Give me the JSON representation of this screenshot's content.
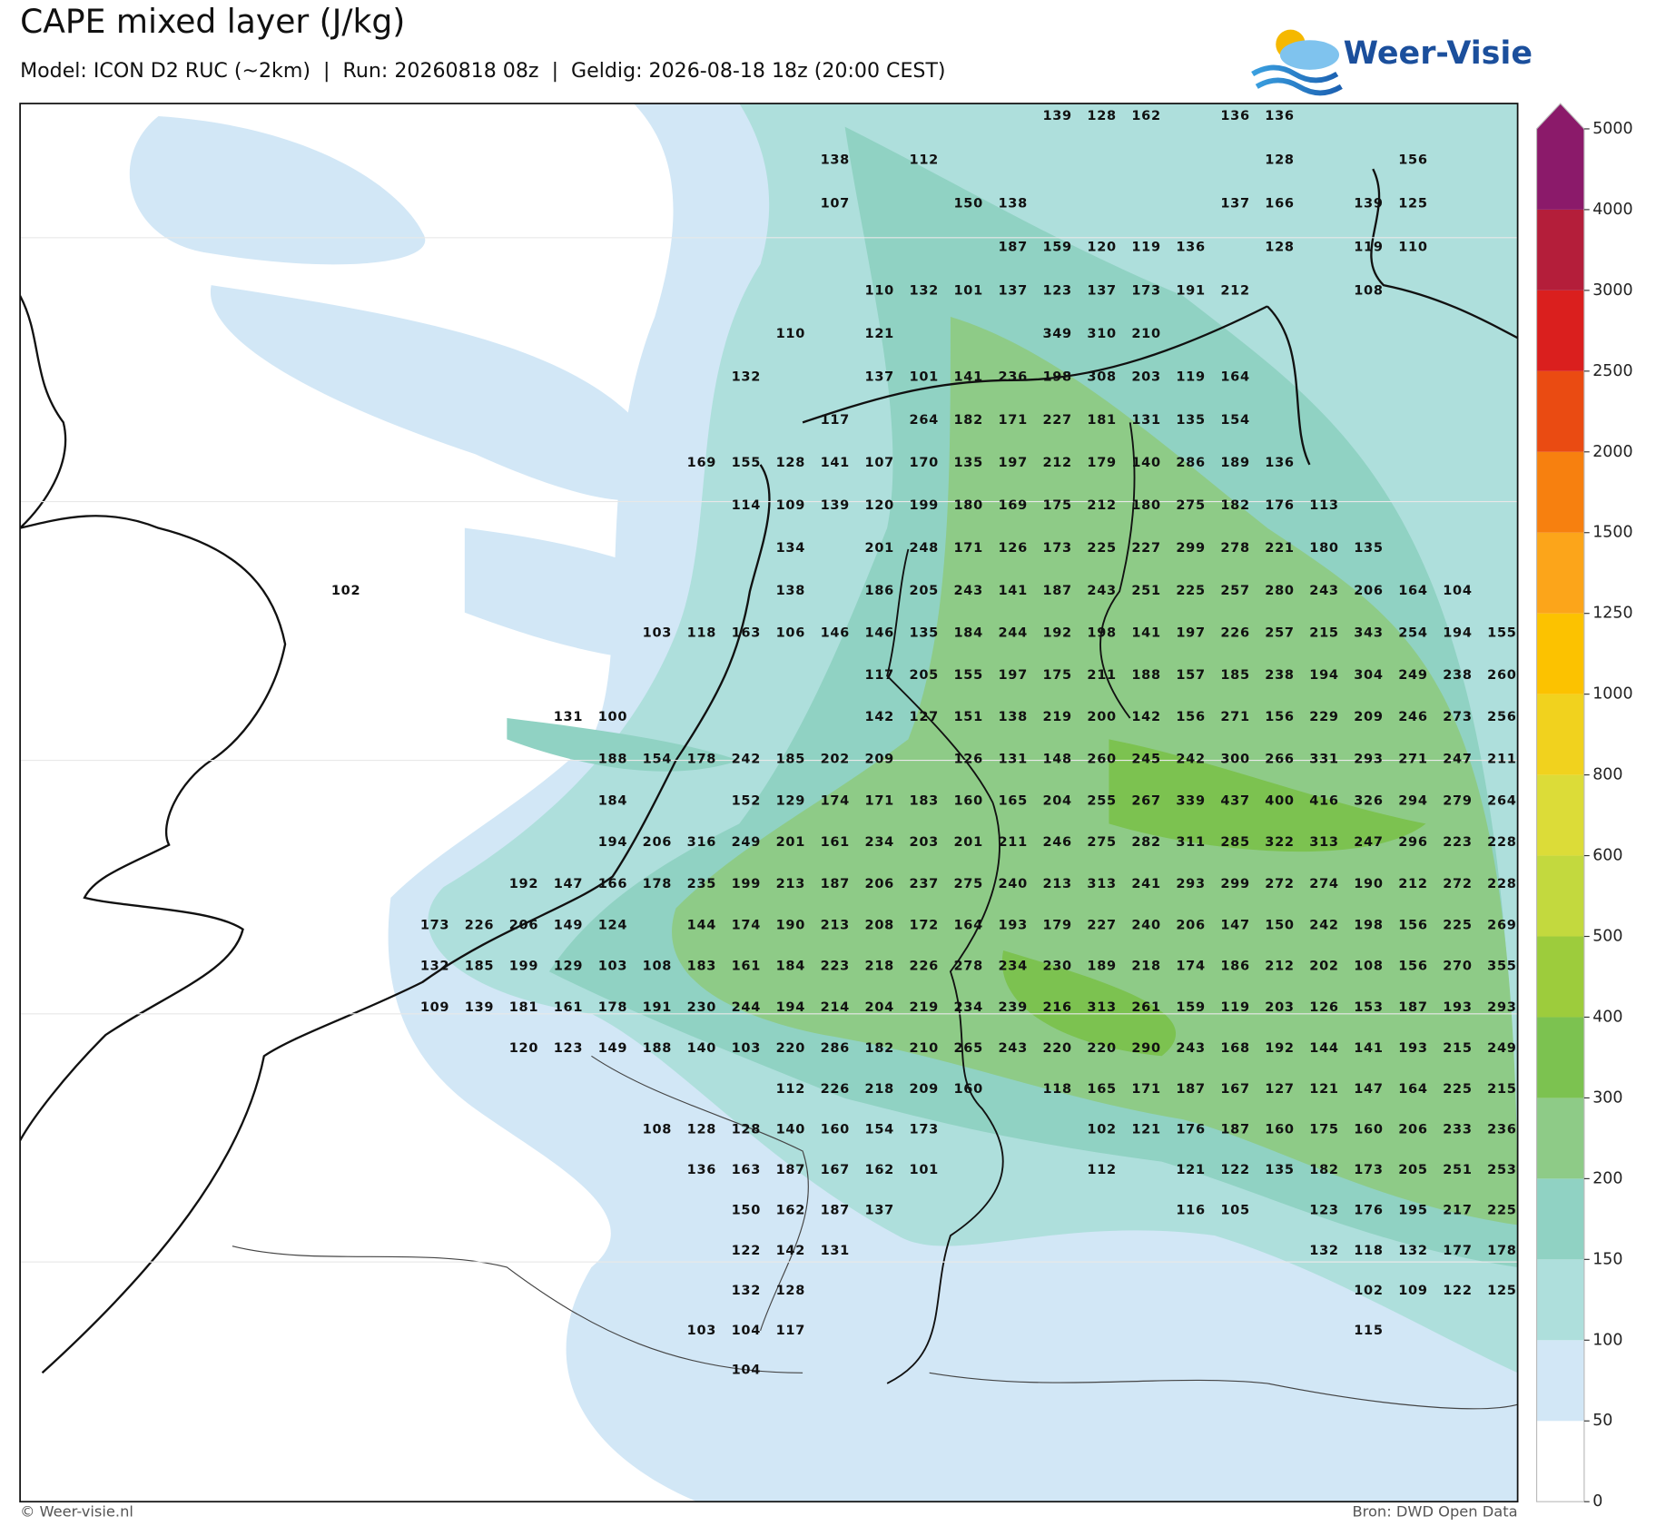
{
  "header": {
    "title": "CAPE mixed layer (J/kg)",
    "subtitle": "Model: ICON D2 RUC (~2km)  |  Run: 20260818 08z  |  Geldig: 2026-08-18 18z (20:00 CEST)",
    "logo": "Weer-Visie"
  },
  "footer": {
    "left": "© Weer-visie.nl",
    "right": "Bron: DWD Open Data"
  },
  "colorbar": {
    "ticks": [
      0,
      50,
      100,
      150,
      200,
      300,
      400,
      500,
      600,
      800,
      1000,
      1250,
      1500,
      2000,
      2500,
      3000,
      4000,
      5000
    ],
    "colors": [
      "#ffffff",
      "#d2e7f6",
      "#aedfdc",
      "#90d2c3",
      "#8ecb87",
      "#7cc250",
      "#9dcc3c",
      "#c3d93e",
      "#dcdc38",
      "#f1d21e",
      "#fcc200",
      "#fca51a",
      "#f7800f",
      "#ea4b12",
      "#da1f1e",
      "#b41e3a",
      "#8b1a6a"
    ]
  },
  "map": {
    "grid": [
      [
        null,
        null,
        null,
        null,
        null,
        null,
        null,
        null,
        null,
        null,
        null,
        null,
        null,
        null,
        null,
        null,
        139,
        128,
        162,
        null,
        136,
        136,
        null,
        null,
        null,
        null,
        null
      ],
      [
        null,
        null,
        null,
        null,
        null,
        null,
        null,
        null,
        null,
        null,
        null,
        138,
        null,
        112,
        null,
        null,
        null,
        null,
        null,
        null,
        null,
        128,
        null,
        null,
        156,
        null,
        null
      ],
      [
        null,
        null,
        null,
        null,
        null,
        null,
        null,
        null,
        null,
        null,
        null,
        107,
        null,
        null,
        150,
        138,
        null,
        null,
        null,
        null,
        137,
        166,
        null,
        139,
        125,
        null,
        null
      ],
      [
        null,
        null,
        null,
        null,
        null,
        null,
        null,
        null,
        null,
        null,
        null,
        null,
        null,
        null,
        null,
        187,
        159,
        120,
        119,
        136,
        null,
        128,
        null,
        119,
        110,
        null,
        null
      ],
      [
        null,
        null,
        null,
        null,
        null,
        null,
        null,
        null,
        null,
        null,
        null,
        null,
        110,
        132,
        101,
        137,
        123,
        137,
        173,
        191,
        212,
        null,
        null,
        108,
        null,
        null,
        null
      ],
      [
        null,
        null,
        null,
        null,
        null,
        null,
        null,
        null,
        null,
        null,
        110,
        null,
        121,
        null,
        null,
        null,
        349,
        310,
        210,
        null,
        null,
        null,
        null,
        null,
        null,
        null,
        null
      ],
      [
        null,
        null,
        null,
        null,
        null,
        null,
        null,
        null,
        null,
        132,
        null,
        null,
        137,
        101,
        141,
        236,
        198,
        308,
        203,
        119,
        164,
        null,
        null,
        null,
        null,
        null,
        null
      ],
      [
        null,
        null,
        null,
        null,
        null,
        null,
        null,
        null,
        null,
        null,
        null,
        117,
        null,
        264,
        182,
        171,
        227,
        181,
        131,
        135,
        154,
        null,
        null,
        null,
        null,
        null,
        null
      ],
      [
        null,
        null,
        null,
        null,
        null,
        null,
        null,
        null,
        169,
        155,
        128,
        141,
        107,
        170,
        135,
        197,
        212,
        179,
        140,
        286,
        189,
        136,
        null,
        null,
        null,
        null,
        null
      ],
      [
        null,
        null,
        null,
        null,
        null,
        null,
        null,
        null,
        null,
        114,
        109,
        139,
        120,
        199,
        180,
        169,
        175,
        212,
        180,
        275,
        182,
        176,
        113,
        null,
        null,
        null,
        null
      ],
      [
        null,
        null,
        null,
        null,
        null,
        null,
        null,
        null,
        null,
        null,
        134,
        null,
        201,
        248,
        171,
        126,
        173,
        225,
        227,
        299,
        278,
        221,
        180,
        135,
        null,
        null,
        null
      ],
      [
        102,
        null,
        null,
        null,
        null,
        null,
        null,
        null,
        null,
        null,
        138,
        null,
        186,
        205,
        243,
        141,
        187,
        243,
        251,
        225,
        257,
        280,
        243,
        206,
        164,
        104,
        null
      ],
      [
        null,
        null,
        null,
        null,
        null,
        null,
        null,
        103,
        118,
        163,
        106,
        146,
        146,
        135,
        184,
        244,
        192,
        198,
        141,
        197,
        226,
        257,
        215,
        343,
        254,
        194,
        155
      ],
      [
        null,
        null,
        null,
        null,
        null,
        null,
        null,
        null,
        null,
        null,
        null,
        null,
        117,
        205,
        155,
        197,
        175,
        211,
        188,
        157,
        185,
        238,
        194,
        304,
        249,
        238,
        260
      ],
      [
        null,
        null,
        null,
        null,
        null,
        131,
        100,
        null,
        null,
        null,
        null,
        null,
        142,
        127,
        151,
        138,
        219,
        200,
        142,
        156,
        271,
        156,
        229,
        209,
        246,
        273,
        256
      ],
      [
        null,
        null,
        null,
        null,
        null,
        null,
        188,
        154,
        178,
        242,
        185,
        202,
        209,
        null,
        126,
        131,
        148,
        260,
        245,
        242,
        300,
        266,
        331,
        293,
        271,
        247,
        211
      ],
      [
        null,
        null,
        null,
        null,
        null,
        null,
        184,
        null,
        null,
        152,
        129,
        174,
        171,
        183,
        160,
        165,
        204,
        255,
        267,
        339,
        437,
        400,
        416,
        326,
        294,
        279,
        264
      ],
      [
        null,
        null,
        null,
        null,
        null,
        null,
        194,
        206,
        316,
        249,
        201,
        161,
        234,
        203,
        201,
        211,
        246,
        275,
        282,
        311,
        285,
        322,
        313,
        247,
        296,
        223,
        228
      ],
      [
        null,
        null,
        null,
        null,
        192,
        147,
        166,
        178,
        235,
        199,
        213,
        187,
        206,
        237,
        275,
        240,
        213,
        313,
        241,
        293,
        299,
        272,
        274,
        190,
        212,
        272,
        228
      ],
      [
        null,
        null,
        173,
        226,
        206,
        149,
        124,
        null,
        144,
        174,
        190,
        213,
        208,
        172,
        164,
        193,
        179,
        227,
        240,
        206,
        147,
        150,
        242,
        198,
        156,
        225,
        269
      ],
      [
        null,
        null,
        132,
        185,
        199,
        129,
        103,
        108,
        183,
        161,
        184,
        223,
        218,
        226,
        278,
        234,
        230,
        189,
        218,
        174,
        186,
        212,
        202,
        108,
        156,
        270,
        355
      ],
      [
        null,
        null,
        109,
        139,
        181,
        161,
        178,
        191,
        230,
        244,
        194,
        214,
        204,
        219,
        234,
        239,
        216,
        313,
        261,
        159,
        119,
        203,
        126,
        153,
        187,
        193,
        293
      ],
      [
        null,
        null,
        null,
        null,
        120,
        123,
        149,
        188,
        140,
        103,
        220,
        286,
        182,
        210,
        265,
        243,
        220,
        220,
        290,
        243,
        168,
        192,
        144,
        141,
        193,
        215,
        249
      ],
      [
        null,
        null,
        null,
        null,
        null,
        null,
        null,
        null,
        null,
        null,
        112,
        226,
        218,
        209,
        160,
        null,
        118,
        165,
        171,
        187,
        167,
        127,
        121,
        147,
        164,
        225,
        215
      ],
      [
        null,
        null,
        null,
        null,
        null,
        null,
        null,
        108,
        128,
        128,
        140,
        160,
        154,
        173,
        null,
        null,
        null,
        102,
        121,
        176,
        187,
        160,
        175,
        160,
        206,
        233,
        236
      ],
      [
        null,
        null,
        null,
        null,
        null,
        null,
        null,
        null,
        136,
        163,
        187,
        167,
        162,
        101,
        null,
        null,
        null,
        112,
        null,
        121,
        122,
        135,
        182,
        173,
        205,
        251,
        253
      ],
      [
        null,
        null,
        null,
        null,
        null,
        null,
        null,
        null,
        null,
        150,
        162,
        187,
        137,
        null,
        null,
        null,
        null,
        null,
        null,
        116,
        105,
        null,
        123,
        176,
        195,
        217,
        225
      ],
      [
        null,
        null,
        null,
        null,
        null,
        null,
        null,
        null,
        null,
        122,
        142,
        131,
        null,
        null,
        null,
        null,
        null,
        null,
        null,
        null,
        null,
        null,
        132,
        118,
        132,
        177,
        178
      ],
      [
        null,
        null,
        null,
        null,
        null,
        null,
        null,
        null,
        null,
        132,
        128,
        null,
        null,
        null,
        null,
        null,
        null,
        null,
        null,
        null,
        null,
        null,
        null,
        102,
        109,
        122,
        125
      ],
      [
        null,
        null,
        null,
        null,
        null,
        null,
        null,
        null,
        103,
        104,
        117,
        null,
        null,
        null,
        null,
        null,
        null,
        null,
        null,
        null,
        null,
        null,
        null,
        115,
        null,
        null,
        null
      ],
      [
        null,
        null,
        null,
        null,
        null,
        null,
        null,
        null,
        null,
        104,
        null,
        null,
        null,
        null,
        null,
        null,
        null,
        null,
        null,
        null,
        null,
        null,
        null,
        null,
        null,
        null,
        null
      ]
    ]
  }
}
